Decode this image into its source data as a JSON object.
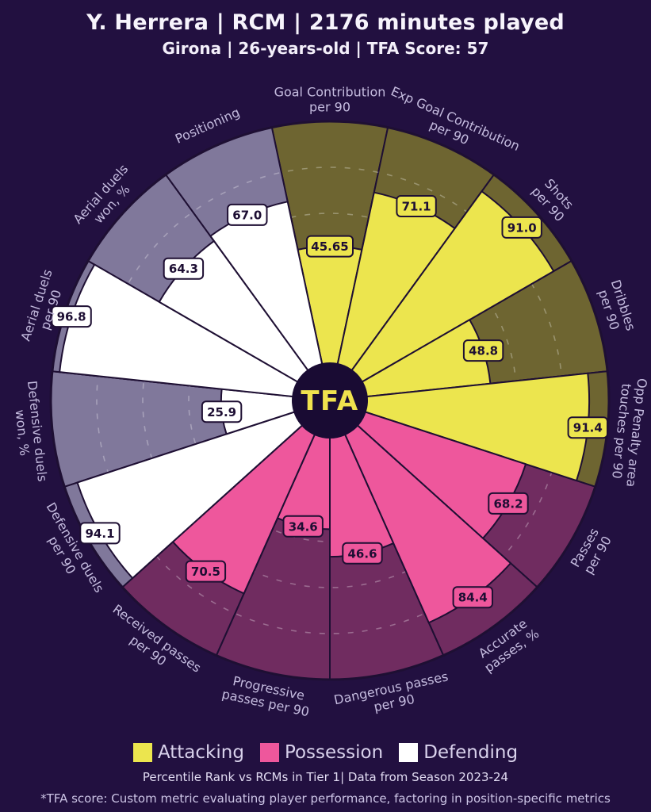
{
  "header": {
    "title": "Y. Herrera | RCM | 2176 minutes played",
    "subtitle": "Girona | 26-years-old | TFA Score: 57"
  },
  "center_logo": {
    "text": "TFA"
  },
  "legend": {
    "items": [
      {
        "label": "Attacking",
        "color": "#ece54e"
      },
      {
        "label": "Possession",
        "color": "#ee579c"
      },
      {
        "label": "Defending",
        "color": "#ffffff"
      }
    ]
  },
  "footer": {
    "source_line": "Percentile Rank vs RCMs in Tier 1| Data from Season 2023-24",
    "footnote": "*TFA score: Custom metric evaluating player performance, factoring in position-specific metrics"
  },
  "colors": {
    "background": "#221040",
    "slice_border": "#1e0f33",
    "gridline": "rgba(255,255,255,0.3)",
    "center_circle": "#190b33",
    "logo_text": "#f0e24e",
    "label_text": "#c5bcdf",
    "value_text": "#1d0e33",
    "title_text": "#f7f4fc"
  },
  "chart_data": {
    "type": "pie",
    "subtype": "pizza-percentile",
    "title": "Percentile Rank vs RCMs in Tier 1",
    "season": "2023-24",
    "max": 100,
    "slice_angle_deg": 24,
    "first_slice_center_deg": 0,
    "gridlines": [
      20,
      40,
      60,
      80
    ],
    "legend_position": "bottom",
    "groups": {
      "attacking": {
        "label": "Attacking",
        "fill": "#ece54e",
        "muted": "#6e6531"
      },
      "possession": {
        "label": "Possession",
        "fill": "#ee579c",
        "muted": "#702c60"
      },
      "defending": {
        "label": "Defending",
        "fill": "#ffffff",
        "muted": "#80789b"
      }
    },
    "params": [
      {
        "label": "Goal Contribution per 90",
        "lines": [
          "Goal Contribution",
          "per 90"
        ],
        "value": "45.65",
        "group": "attacking"
      },
      {
        "label": "Exp Goal Contribution per 90",
        "lines": [
          "Exp Goal Contribution",
          "per 90"
        ],
        "value": "71.1",
        "group": "attacking"
      },
      {
        "label": "Shots per 90",
        "lines": [
          "Shots",
          "per 90"
        ],
        "value": "91.0",
        "group": "attacking"
      },
      {
        "label": "Dribbles per 90",
        "lines": [
          "Dribbles",
          "per 90"
        ],
        "value": "48.8",
        "group": "attacking"
      },
      {
        "label": "Opp Penalty area touches per 90",
        "lines": [
          "Opp Penalty area",
          "touches per 90"
        ],
        "value": "91.4",
        "group": "attacking"
      },
      {
        "label": "Passes per 90",
        "lines": [
          "Passes",
          "per 90"
        ],
        "value": "68.2",
        "group": "possession"
      },
      {
        "label": "Accurate passes, %",
        "lines": [
          "Accurate",
          "passes, %"
        ],
        "value": "84.4",
        "group": "possession"
      },
      {
        "label": "Dangerous passes per 90",
        "lines": [
          "Dangerous passes",
          "per 90"
        ],
        "value": "46.6",
        "group": "possession"
      },
      {
        "label": "Progressive passes per 90",
        "lines": [
          "Progressive",
          "passes per 90"
        ],
        "value": "34.6",
        "group": "possession"
      },
      {
        "label": "Received passes per 90",
        "lines": [
          "Received passes",
          "per 90"
        ],
        "value": "70.5",
        "group": "possession"
      },
      {
        "label": "Defensive duels per 90",
        "lines": [
          "Defensive duels",
          "per 90"
        ],
        "value": "94.1",
        "group": "defending"
      },
      {
        "label": "Defensive duels won, %",
        "lines": [
          "Defensive duels",
          "won, %"
        ],
        "value": "25.9",
        "group": "defending"
      },
      {
        "label": "Aerial duels per 90",
        "lines": [
          "Aerial duels",
          "per 90"
        ],
        "value": "96.8",
        "group": "defending"
      },
      {
        "label": "Aerial duels won, %",
        "lines": [
          "Aerial duels",
          "won, %"
        ],
        "value": "64.3",
        "group": "defending"
      },
      {
        "label": "Positioning",
        "lines": [
          "Positioning"
        ],
        "value": "67.0",
        "group": "defending"
      }
    ]
  }
}
